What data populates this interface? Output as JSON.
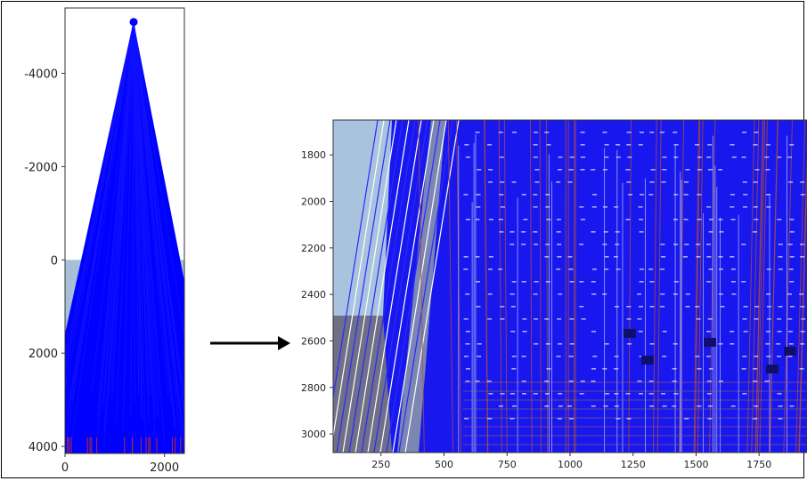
{
  "chart_data": [
    {
      "type": "scatter",
      "title": "",
      "xlabel": "",
      "ylabel": "",
      "xlim": [
        0,
        2400
      ],
      "ylim": [
        4150,
        -5400
      ],
      "y_inverted": true,
      "xticks": [
        "0",
        "2000"
      ],
      "yticks": [
        "-4000",
        "-2000",
        "0",
        "2000",
        "4000"
      ],
      "xtick_values": [
        0,
        2000
      ],
      "ytick_values": [
        -4000,
        -2000,
        0,
        2000,
        4000
      ],
      "apex": {
        "x": 1380,
        "y": -5100
      },
      "line_color": "#0000ff",
      "background": "image: building facade photo (rows 0 to 4150)"
    },
    {
      "type": "scatter",
      "title": "",
      "xlabel": "",
      "ylabel": "",
      "xlim": [
        60,
        1940
      ],
      "ylim": [
        3080,
        1650
      ],
      "y_inverted": true,
      "xticks": [
        "250",
        "500",
        "750",
        "1000",
        "1250",
        "1500",
        "1750"
      ],
      "yticks": [
        "1800",
        "2000",
        "2200",
        "2400",
        "2600",
        "2800",
        "3000"
      ],
      "xtick_values": [
        250,
        500,
        750,
        1000,
        1250,
        1500,
        1750
      ],
      "ytick_values": [
        1800,
        2000,
        2200,
        2400,
        2600,
        2800,
        3000
      ],
      "line_color": "#0000ff",
      "background": "image: zoomed building facade with detected vertical lines"
    }
  ],
  "colors": {
    "blue": "#0000ff",
    "red": "#e2301e",
    "sky": "#9fb9d6",
    "facade": "#5a5a78"
  }
}
